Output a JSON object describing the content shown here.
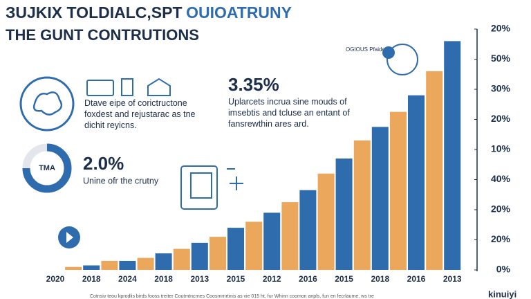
{
  "chart_data": {
    "type": "bar",
    "categories": [
      "2020",
      "2018",
      "2024",
      "2018",
      "2013",
      "2015",
      "2012",
      "2016",
      "2015",
      "2018",
      "2016",
      "2013"
    ],
    "series": [
      {
        "color": "#eba85c",
        "values": [
          null,
          0.1,
          0.3,
          0.4,
          0.7,
          1.1,
          1.6,
          2.25,
          3.2,
          4.3,
          5.25,
          6.6
        ]
      },
      {
        "color": "#2f6cad",
        "values": [
          null,
          0.15,
          0.3,
          0.55,
          0.9,
          1.4,
          1.9,
          2.65,
          3.7,
          4.75,
          5.8,
          7.6
        ]
      }
    ],
    "ylim": [
      0,
      8
    ],
    "yticks": [
      {
        "value": 8,
        "label": "20%"
      },
      {
        "value": 7,
        "label": "50%"
      },
      {
        "value": 6,
        "label": "30%"
      },
      {
        "value": 5,
        "label": "20%"
      },
      {
        "value": 4,
        "label": "10%"
      },
      {
        "value": 3,
        "label": "40%"
      },
      {
        "value": 2,
        "label": "20%"
      },
      {
        "value": 1,
        "label": "20%"
      },
      {
        "value": 0,
        "label": "0%"
      }
    ]
  },
  "header": {
    "title_dark": "ЗUJKIX TOLDIALC,SPT",
    "title_blue": "OUIOATRUNY",
    "subtitle": "THE GUNT CONTRUTIONS"
  },
  "panel": {
    "block1": [
      "Dtave eipe of corictructone",
      "foxdest and rejustarac as tne",
      "dichit reyicns."
    ],
    "stat1": "3.35%",
    "block2": [
      "Uplarcets incrua sine mouds of",
      "imsebtis and tcluse an entant of",
      "fansrewthin ares ard."
    ],
    "donut_label": "TMA",
    "stat2": "2.0%",
    "block3": "Unine ofr the crutny",
    "badge": "OGIOUS Pfaide"
  },
  "footer": {
    "note": "Cotnsiv teou kprodlis birds fooss treiter Coutmtncrnes Coosmrnrtinis as vie 015 ht, fur Whinn coomon anpls, fun en fecrlaume, ws tre",
    "brand": "kinuiyi"
  }
}
